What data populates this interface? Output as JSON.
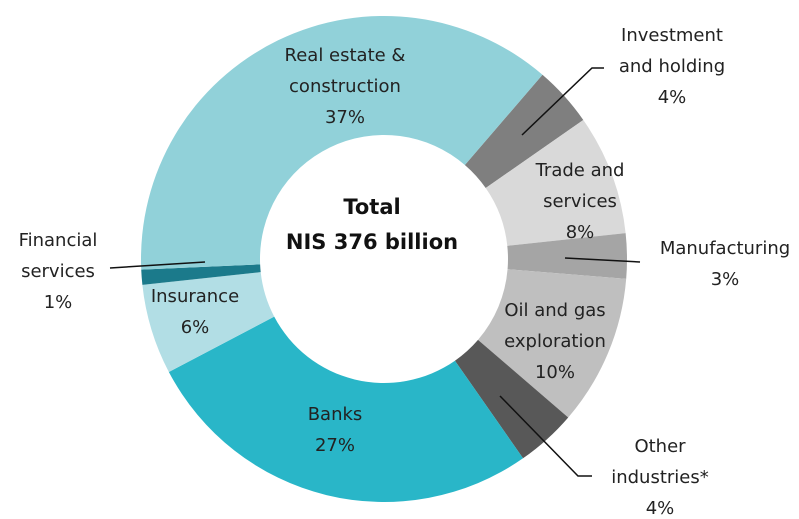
{
  "chart_data": {
    "type": "donut",
    "center_text": [
      "Total",
      "NIS 376 billion"
    ],
    "categories": [
      "Investment and holding",
      "Trade and services",
      "Manufacturing",
      "Oil and gas exploration",
      "Other industries*",
      "Banks",
      "Insurance",
      "Financial services",
      "Real estate & construction"
    ],
    "values": [
      4,
      8,
      3,
      10,
      4,
      27,
      6,
      1,
      37
    ],
    "value_labels": [
      "4%",
      "8%",
      "3%",
      "10%",
      "4%",
      "27%",
      "6%",
      "1%",
      "37%"
    ],
    "colors": [
      "#7f7f7f",
      "#d9d9d9",
      "#a5a5a5",
      "#bfbfbf",
      "#585858",
      "#29b6c8",
      "#b2dee5",
      "#1b7a8b",
      "#91d1d9"
    ]
  }
}
